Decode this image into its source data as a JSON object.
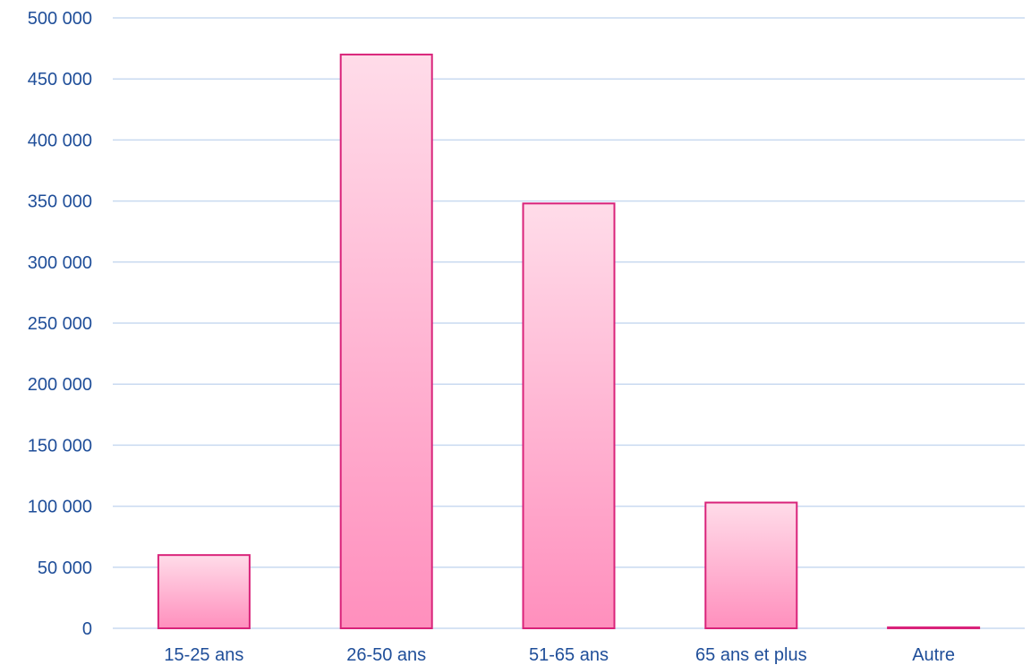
{
  "colors": {
    "axis_text": "#1f4e99",
    "grid": "#c9daf0",
    "bar_stroke": "#d9237a",
    "bar_fill_top": "#ffdce9",
    "bar_fill_bottom": "#ff8fbd"
  },
  "chart_data": {
    "type": "bar",
    "title": "",
    "xlabel": "",
    "ylabel": "",
    "categories": [
      "15-25 ans",
      "26-50 ans",
      "51-65 ans",
      "65 ans et plus",
      "Autre"
    ],
    "values": [
      60000,
      470000,
      348000,
      103000,
      800
    ],
    "ylim": [
      0,
      500000
    ],
    "yticks": [
      0,
      50000,
      100000,
      150000,
      200000,
      250000,
      300000,
      350000,
      400000,
      450000,
      500000
    ],
    "ytick_labels": [
      "0",
      "50 000",
      "100 000",
      "150 000",
      "200 000",
      "250 000",
      "300 000",
      "350 000",
      "400 000",
      "450 000",
      "500 000"
    ],
    "grid": true,
    "legend": "none"
  }
}
